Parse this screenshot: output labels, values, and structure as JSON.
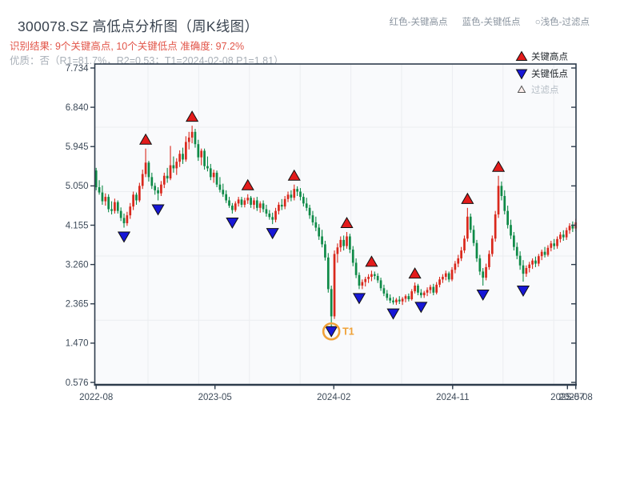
{
  "header": {
    "title": "300078.SZ 高低点分析图（周K线图）",
    "result_line": "识别结果: 9个关键高点, 10个关键低点  准确度: 97.2%",
    "quality_line": "优质：否（R1=81.7%，R2=0.53；T1=2024-02-08 P1=1.81）",
    "hints": [
      {
        "text": "红色-关键高点"
      },
      {
        "text": "蓝色-关键低点"
      },
      {
        "text": "○浅色-过滤点"
      }
    ]
  },
  "chart_data": {
    "type": "candlestick",
    "symbol": "300078.SZ",
    "period": "weekly",
    "legend": [
      {
        "name": "关键高点",
        "marker": "red-up-triangle"
      },
      {
        "name": "关键低点",
        "marker": "blue-down-triangle"
      },
      {
        "name": "过滤点",
        "marker": "outline-up-triangle"
      }
    ],
    "y_ticks": [
      {
        "label": "7.734",
        "value": 7.734
      },
      {
        "label": "6.840",
        "value": 6.84
      },
      {
        "label": "5.945",
        "value": 5.945
      },
      {
        "label": "5.050",
        "value": 5.05
      },
      {
        "label": "4.155",
        "value": 4.155
      },
      {
        "label": "3.260",
        "value": 3.26
      },
      {
        "label": "2.365",
        "value": 2.365
      },
      {
        "label": "1.470",
        "value": 1.47
      },
      {
        "label": "0.576",
        "value": 0.576
      }
    ],
    "x_ticks": [
      {
        "label": "2022-08",
        "week": 0
      },
      {
        "label": "2023-05",
        "week": 38.4
      },
      {
        "label": "2024-02",
        "week": 76.8
      },
      {
        "label": "2024-11",
        "week": 115.2
      },
      {
        "label": "2025-07",
        "week": 152.3
      },
      {
        "label": "2025-08",
        "week": 155
      }
    ],
    "ylim": [
      0.576,
      7.734
    ],
    "candles": [
      [
        5.4,
        5.46,
        4.95,
        5.02
      ],
      [
        5.02,
        5.18,
        4.85,
        4.9
      ],
      [
        4.9,
        5.06,
        4.62,
        4.7
      ],
      [
        4.7,
        4.88,
        4.6,
        4.8
      ],
      [
        4.8,
        4.86,
        4.45,
        4.52
      ],
      [
        4.52,
        4.7,
        4.4,
        4.48
      ],
      [
        4.48,
        4.76,
        4.42,
        4.68
      ],
      [
        4.68,
        4.72,
        4.42,
        4.48
      ],
      [
        4.48,
        4.56,
        4.25,
        4.32
      ],
      [
        4.32,
        4.42,
        4.1,
        4.2
      ],
      [
        4.2,
        4.46,
        4.14,
        4.38
      ],
      [
        4.38,
        4.66,
        4.3,
        4.58
      ],
      [
        4.58,
        4.92,
        4.5,
        4.85
      ],
      [
        4.85,
        4.9,
        4.62,
        4.72
      ],
      [
        4.72,
        5.12,
        4.68,
        5.05
      ],
      [
        5.05,
        5.42,
        4.98,
        5.32
      ],
      [
        5.32,
        5.9,
        5.25,
        5.58
      ],
      [
        5.58,
        5.62,
        5.15,
        5.25
      ],
      [
        5.25,
        5.35,
        4.98,
        5.05
      ],
      [
        5.05,
        5.12,
        4.85,
        4.95
      ],
      [
        4.95,
        5.02,
        4.72,
        4.88
      ],
      [
        4.88,
        5.16,
        4.82,
        5.08
      ],
      [
        5.08,
        5.35,
        5.0,
        5.28
      ],
      [
        5.28,
        5.46,
        5.12,
        5.22
      ],
      [
        5.22,
        5.96,
        5.18,
        5.52
      ],
      [
        5.52,
        5.72,
        5.35,
        5.45
      ],
      [
        5.45,
        5.68,
        5.3,
        5.6
      ],
      [
        5.6,
        5.86,
        5.48,
        5.78
      ],
      [
        5.78,
        5.92,
        5.55,
        5.65
      ],
      [
        5.65,
        6.18,
        5.6,
        6.05
      ],
      [
        6.05,
        6.28,
        5.88,
        6.15
      ],
      [
        6.15,
        6.42,
        6.02,
        6.28
      ],
      [
        6.28,
        6.35,
        5.92,
        6.0
      ],
      [
        6.0,
        6.1,
        5.62,
        5.7
      ],
      [
        5.7,
        5.9,
        5.52,
        5.85
      ],
      [
        5.85,
        5.9,
        5.42,
        5.5
      ],
      [
        5.5,
        5.72,
        5.38,
        5.45
      ],
      [
        5.45,
        5.55,
        5.18,
        5.25
      ],
      [
        5.25,
        5.42,
        5.12,
        5.35
      ],
      [
        5.35,
        5.4,
        5.02,
        5.08
      ],
      [
        5.08,
        5.25,
        4.9,
        4.96
      ],
      [
        4.96,
        5.1,
        4.8,
        4.86
      ],
      [
        4.86,
        4.95,
        4.66,
        4.72
      ],
      [
        4.72,
        4.8,
        4.55,
        4.6
      ],
      [
        4.6,
        4.66,
        4.42,
        4.5
      ],
      [
        4.5,
        4.7,
        4.46,
        4.65
      ],
      [
        4.65,
        4.8,
        4.58,
        4.74
      ],
      [
        4.74,
        4.8,
        4.56,
        4.62
      ],
      [
        4.62,
        4.78,
        4.56,
        4.72
      ],
      [
        4.72,
        4.86,
        4.64,
        4.78
      ],
      [
        4.78,
        4.82,
        4.55,
        4.62
      ],
      [
        4.62,
        4.78,
        4.52,
        4.72
      ],
      [
        4.72,
        4.8,
        4.48,
        4.55
      ],
      [
        4.55,
        4.7,
        4.44,
        4.65
      ],
      [
        4.65,
        4.72,
        4.45,
        4.52
      ],
      [
        4.52,
        4.62,
        4.35,
        4.42
      ],
      [
        4.42,
        4.5,
        4.28,
        4.34
      ],
      [
        4.34,
        4.44,
        4.18,
        4.28
      ],
      [
        4.28,
        4.55,
        4.22,
        4.48
      ],
      [
        4.48,
        4.68,
        4.4,
        4.62
      ],
      [
        4.62,
        4.75,
        4.5,
        4.58
      ],
      [
        4.58,
        4.82,
        4.52,
        4.75
      ],
      [
        4.75,
        4.92,
        4.68,
        4.85
      ],
      [
        4.85,
        4.95,
        4.7,
        4.78
      ],
      [
        4.78,
        5.08,
        4.72,
        4.98
      ],
      [
        4.98,
        5.04,
        4.82,
        4.92
      ],
      [
        4.92,
        5.0,
        4.72,
        4.8
      ],
      [
        4.8,
        4.88,
        4.58,
        4.65
      ],
      [
        4.65,
        4.78,
        4.48,
        4.55
      ],
      [
        4.55,
        4.62,
        4.3,
        4.38
      ],
      [
        4.38,
        4.48,
        4.15,
        4.22
      ],
      [
        4.22,
        4.35,
        4.02,
        4.1
      ],
      [
        4.1,
        4.18,
        3.82,
        3.9
      ],
      [
        3.9,
        4.05,
        3.65,
        3.72
      ],
      [
        3.72,
        3.8,
        3.35,
        3.42
      ],
      [
        3.42,
        3.52,
        2.62,
        2.7
      ],
      [
        2.7,
        2.78,
        1.81,
        2.08
      ],
      [
        2.08,
        3.58,
        2.02,
        3.5
      ],
      [
        3.5,
        3.74,
        3.3,
        3.65
      ],
      [
        3.65,
        3.9,
        3.55,
        3.82
      ],
      [
        3.82,
        3.92,
        3.58,
        3.68
      ],
      [
        3.68,
        4.0,
        3.62,
        3.9
      ],
      [
        3.9,
        3.96,
        3.52,
        3.6
      ],
      [
        3.6,
        3.68,
        3.22,
        3.3
      ],
      [
        3.3,
        3.4,
        2.95,
        3.02
      ],
      [
        3.02,
        3.08,
        2.7,
        2.78
      ],
      [
        2.78,
        2.92,
        2.7,
        2.86
      ],
      [
        2.86,
        2.98,
        2.76,
        2.93
      ],
      [
        2.93,
        3.04,
        2.84,
        2.98
      ],
      [
        2.98,
        3.12,
        2.88,
        3.04
      ],
      [
        3.04,
        3.1,
        2.92,
        3.0
      ],
      [
        3.0,
        3.06,
        2.84,
        2.9
      ],
      [
        2.9,
        2.96,
        2.66,
        2.72
      ],
      [
        2.72,
        2.8,
        2.54,
        2.6
      ],
      [
        2.6,
        2.68,
        2.44,
        2.5
      ],
      [
        2.5,
        2.58,
        2.38,
        2.44
      ],
      [
        2.44,
        2.52,
        2.35,
        2.4
      ],
      [
        2.4,
        2.5,
        2.34,
        2.46
      ],
      [
        2.46,
        2.54,
        2.36,
        2.42
      ],
      [
        2.42,
        2.52,
        2.34,
        2.48
      ],
      [
        2.48,
        2.58,
        2.4,
        2.54
      ],
      [
        2.54,
        2.6,
        2.42,
        2.47
      ],
      [
        2.47,
        2.7,
        2.44,
        2.65
      ],
      [
        2.65,
        2.85,
        2.6,
        2.78
      ],
      [
        2.78,
        2.82,
        2.56,
        2.62
      ],
      [
        2.62,
        2.7,
        2.5,
        2.56
      ],
      [
        2.56,
        2.66,
        2.5,
        2.62
      ],
      [
        2.62,
        2.74,
        2.54,
        2.68
      ],
      [
        2.68,
        2.8,
        2.6,
        2.75
      ],
      [
        2.75,
        2.82,
        2.56,
        2.62
      ],
      [
        2.62,
        2.86,
        2.58,
        2.8
      ],
      [
        2.8,
        2.98,
        2.74,
        2.92
      ],
      [
        2.92,
        3.04,
        2.84,
        2.98
      ],
      [
        2.98,
        3.12,
        2.9,
        3.06
      ],
      [
        3.06,
        3.1,
        2.86,
        2.92
      ],
      [
        2.92,
        3.2,
        2.88,
        3.14
      ],
      [
        3.14,
        3.34,
        3.06,
        3.28
      ],
      [
        3.28,
        3.48,
        3.2,
        3.4
      ],
      [
        3.4,
        3.66,
        3.34,
        3.58
      ],
      [
        3.58,
        3.92,
        3.52,
        3.85
      ],
      [
        3.85,
        4.55,
        3.78,
        4.35
      ],
      [
        4.35,
        4.42,
        3.98,
        4.05
      ],
      [
        4.05,
        4.15,
        3.68,
        3.75
      ],
      [
        3.75,
        3.82,
        3.32,
        3.4
      ],
      [
        3.4,
        3.48,
        3.02,
        3.1
      ],
      [
        3.1,
        3.18,
        2.78,
        2.96
      ],
      [
        2.96,
        3.28,
        2.9,
        3.2
      ],
      [
        3.2,
        3.58,
        3.14,
        3.5
      ],
      [
        3.5,
        3.92,
        3.44,
        3.85
      ],
      [
        3.85,
        4.48,
        3.78,
        4.4
      ],
      [
        4.4,
        5.28,
        4.32,
        5.05
      ],
      [
        5.05,
        5.15,
        4.72,
        4.82
      ],
      [
        4.82,
        4.95,
        4.4,
        4.48
      ],
      [
        4.48,
        4.6,
        4.08,
        4.16
      ],
      [
        4.16,
        4.28,
        3.84,
        3.92
      ],
      [
        3.92,
        4.0,
        3.58,
        3.66
      ],
      [
        3.66,
        3.76,
        3.38,
        3.46
      ],
      [
        3.46,
        3.56,
        3.14,
        3.24
      ],
      [
        3.24,
        3.36,
        2.87,
        3.05
      ],
      [
        3.05,
        3.24,
        2.98,
        3.18
      ],
      [
        3.18,
        3.32,
        3.08,
        3.26
      ],
      [
        3.26,
        3.4,
        3.16,
        3.35
      ],
      [
        3.35,
        3.44,
        3.2,
        3.28
      ],
      [
        3.28,
        3.5,
        3.22,
        3.45
      ],
      [
        3.45,
        3.6,
        3.36,
        3.55
      ],
      [
        3.55,
        3.66,
        3.42,
        3.48
      ],
      [
        3.48,
        3.7,
        3.44,
        3.64
      ],
      [
        3.64,
        3.8,
        3.56,
        3.74
      ],
      [
        3.74,
        3.84,
        3.6,
        3.68
      ],
      [
        3.68,
        3.9,
        3.62,
        3.84
      ],
      [
        3.84,
        4.0,
        3.76,
        3.94
      ],
      [
        3.94,
        4.04,
        3.8,
        3.88
      ],
      [
        3.88,
        4.1,
        3.82,
        4.04
      ],
      [
        4.04,
        4.2,
        3.96,
        4.14
      ],
      [
        4.14,
        4.24,
        4.0,
        4.08
      ],
      [
        4.08,
        4.3,
        4.02,
        4.22
      ]
    ],
    "key_highs": [
      {
        "week": 16,
        "price": 5.9
      },
      {
        "week": 31,
        "price": 6.42
      },
      {
        "week": 49,
        "price": 4.86
      },
      {
        "week": 64,
        "price": 5.08
      },
      {
        "week": 81,
        "price": 4.0
      },
      {
        "week": 89,
        "price": 3.12
      },
      {
        "week": 103,
        "price": 2.85
      },
      {
        "week": 120,
        "price": 4.55
      },
      {
        "week": 130,
        "price": 5.28
      }
    ],
    "key_lows": [
      {
        "week": 9,
        "price": 4.1
      },
      {
        "week": 20,
        "price": 4.72
      },
      {
        "week": 44,
        "price": 4.42
      },
      {
        "week": 57,
        "price": 4.18
      },
      {
        "week": 76,
        "price": 1.81
      },
      {
        "week": 85,
        "price": 2.7
      },
      {
        "week": 96,
        "price": 2.35
      },
      {
        "week": 105,
        "price": 2.5
      },
      {
        "week": 125,
        "price": 2.78
      },
      {
        "week": 138,
        "price": 2.87
      }
    ],
    "t1": {
      "week": 76,
      "label": "T1",
      "date": "2024-02-08",
      "price": 1.81
    },
    "colors": {
      "up": "#d9281c",
      "down": "#0e8a47",
      "key_high": "#e31b1b",
      "key_low": "#1717d6",
      "filter_fill": "#fdeeec",
      "filter_edge": "#555555",
      "t1": "#f0a238",
      "spine": "#2e3c4c",
      "grid": "#ebedf0",
      "plot_bg": "#f9fafc",
      "tick_text": "#3d4a59",
      "legend_text": "#1f2429",
      "legend_muted": "#b6bec6"
    }
  }
}
